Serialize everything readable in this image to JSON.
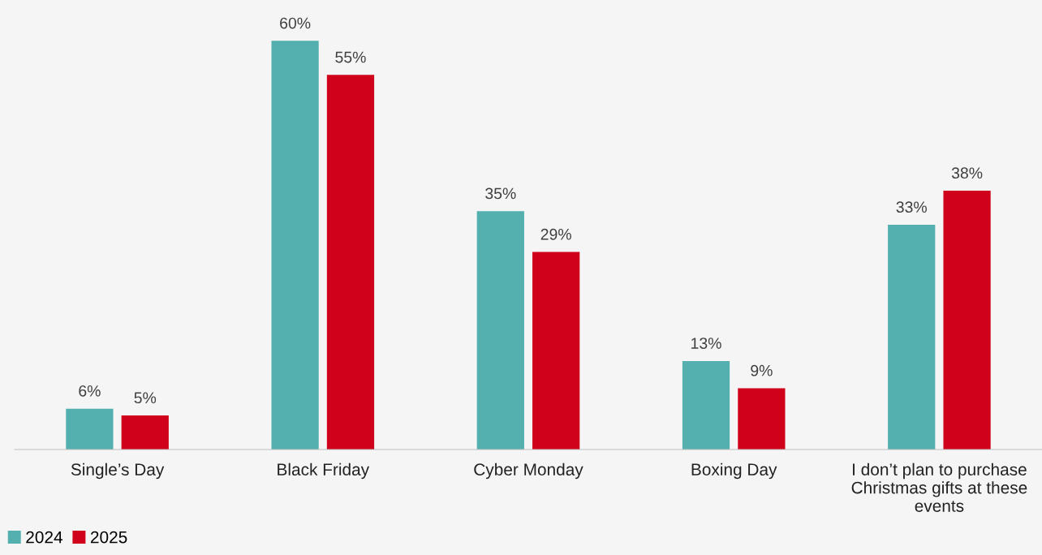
{
  "chart_data": {
    "type": "bar",
    "categories": [
      "Single’s Day",
      "Black Friday",
      "Cyber Monday",
      "Boxing Day",
      "I don’t plan to purchase Christmas gifts at these events"
    ],
    "series": [
      {
        "name": "2024",
        "color": "#53b0ae",
        "values": [
          6,
          60,
          35,
          13,
          33
        ],
        "value_labels": [
          "6%",
          "60%",
          "35%",
          "13%",
          "33%"
        ]
      },
      {
        "name": "2025",
        "color": "#d0021b",
        "values": [
          5,
          55,
          29,
          9,
          38
        ],
        "value_labels": [
          "5%",
          "55%",
          "29%",
          "9%",
          "38%"
        ]
      }
    ],
    "ylim": [
      0,
      66
    ],
    "legend": "bottom left",
    "grid": false
  }
}
